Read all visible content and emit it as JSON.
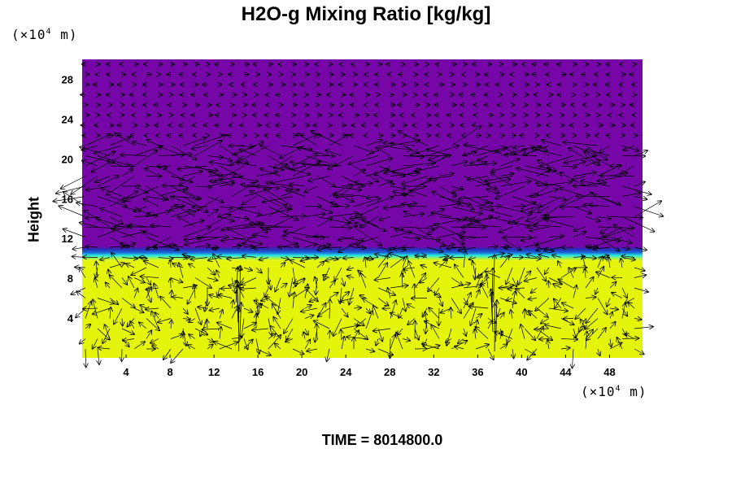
{
  "chart_data": {
    "type": "heatmap",
    "title": "H2O-g Mixing Ratio [kg/kg]",
    "ylabel": "Height",
    "x_unit": "(×10",
    "x_unit_exp": "4",
    "x_unit_end": " m)",
    "y_unit": "(×10",
    "y_unit_exp": "4",
    "y_unit_end": " m)",
    "footer": "TIME = 8014800.0",
    "x_ticks": [
      4,
      8,
      12,
      16,
      20,
      24,
      28,
      32,
      36,
      40,
      44,
      48
    ],
    "y_ticks": [
      4,
      8,
      12,
      16,
      20,
      24,
      28
    ],
    "xlim": [
      0,
      51
    ],
    "ylim": [
      0,
      30
    ],
    "fields": {
      "lower_layer": {
        "y_range": [
          0,
          9.8
        ],
        "color": "#e4f40a"
      },
      "transition_layer": {
        "y_range": [
          9.8,
          11.2
        ],
        "colors": [
          "#e4f40a",
          "#26e8e0",
          "#1a6ed8",
          "#2432b8",
          "#7606a8"
        ]
      },
      "upper_layer": {
        "y_range": [
          11.2,
          30
        ],
        "color": "#7606a8"
      }
    },
    "vectors": {
      "color": "#000000",
      "description": "wind velocity arrows overlaid"
    }
  }
}
